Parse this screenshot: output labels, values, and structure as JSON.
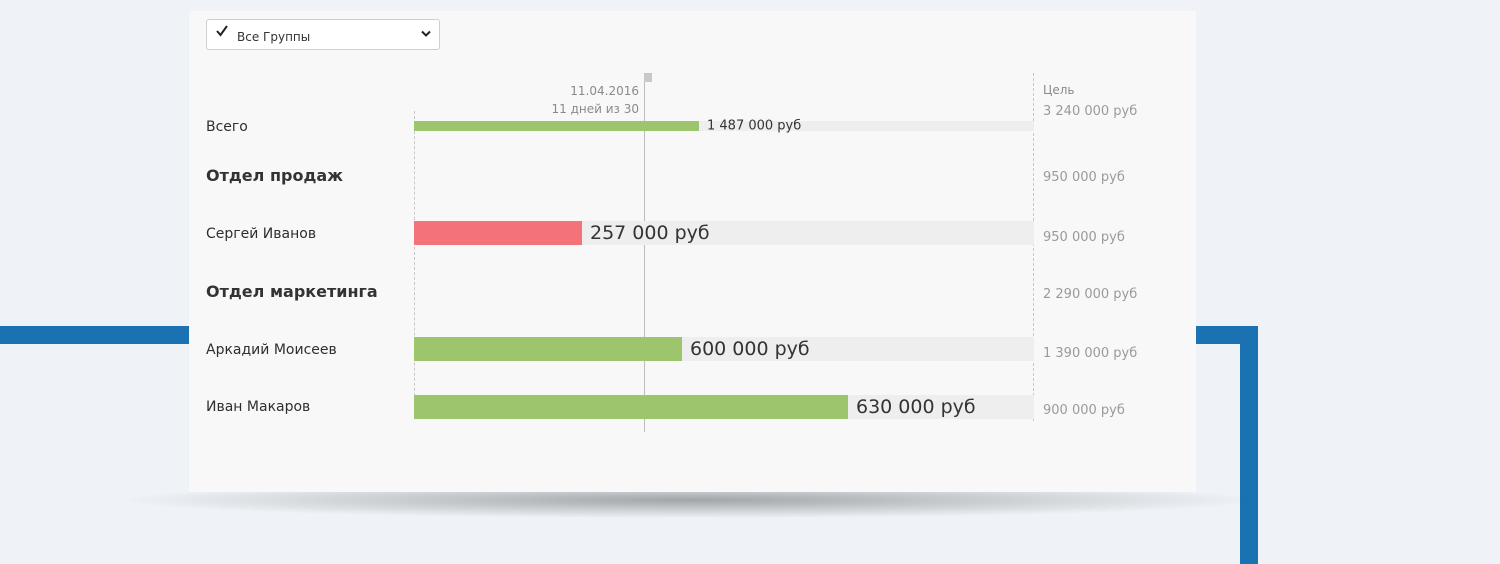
{
  "filter": {
    "label": "Все Группы",
    "checked": true
  },
  "timeline": {
    "date": "11.04.2016",
    "days": "11 дней из 30",
    "fraction": 0.3667
  },
  "goal_header": "Цель",
  "rows": [
    {
      "label": "Всего",
      "value": 1487000,
      "value_text": "1 487 000 руб",
      "goal": 3240000,
      "goal_text": "3 240 000 руб",
      "status": "good",
      "kind": "total"
    },
    {
      "label": "Отдел продаж",
      "goal_text": "950 000 руб",
      "kind": "group"
    },
    {
      "label": "Сергей Иванов",
      "value": 257000,
      "value_text": "257 000 руб",
      "goal": 950000,
      "goal_text": "950 000 руб",
      "status": "bad",
      "kind": "person"
    },
    {
      "label": "Отдел маркетинга",
      "goal_text": "2 290 000 руб",
      "kind": "group"
    },
    {
      "label": "Аркадий Моисеев",
      "value": 600000,
      "value_text": "600 000 руб",
      "goal": 1390000,
      "goal_text": "1 390 000 руб",
      "status": "good",
      "kind": "person"
    },
    {
      "label": "Иван Макаров",
      "value": 630000,
      "value_text": "630 000 руб",
      "goal": 900000,
      "goal_text": "900 000 руб",
      "status": "good",
      "kind": "person"
    }
  ],
  "colors": {
    "good": "#9dc56d",
    "bad": "#f4737a",
    "track": "#eeeeee",
    "accent_line": "#1a72b3"
  }
}
